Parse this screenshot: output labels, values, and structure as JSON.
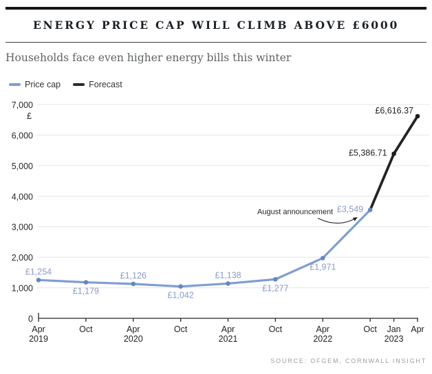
{
  "header": {
    "title": "ENERGY PRICE CAP WILL CLIMB ABOVE £6000",
    "subtitle": "Households face even higher energy bills this winter"
  },
  "legend": {
    "items": [
      {
        "label": "Price cap",
        "color": "#7e9dd2"
      },
      {
        "label": "Forecast",
        "color": "#2b2b2b"
      }
    ]
  },
  "footer": {
    "source": "SOURCE: OFGEM, CORNWALL INSIGHT"
  },
  "colors": {
    "accent_blue": "#7e9dd2",
    "forecast_black": "#232323",
    "grid": "#e4e4e4",
    "axis": "#262626"
  },
  "chart_data": {
    "type": "line",
    "title": "ENERGY PRICE CAP WILL CLIMB ABOVE £6000",
    "xlabel": "",
    "ylabel": "£",
    "ylim": [
      0,
      7000
    ],
    "ytick_step": 1000,
    "grid": true,
    "legend_position": "top-left",
    "x_months_range": [
      0,
      48
    ],
    "xticks": [
      {
        "month": 0,
        "label": "Apr",
        "year": "2019"
      },
      {
        "month": 6,
        "label": "Oct"
      },
      {
        "month": 12,
        "label": "Apr",
        "year": "2020"
      },
      {
        "month": 18,
        "label": "Oct"
      },
      {
        "month": 24,
        "label": "Apr",
        "year": "2021"
      },
      {
        "month": 30,
        "label": "Oct"
      },
      {
        "month": 36,
        "label": "Apr",
        "year": "2022"
      },
      {
        "month": 42,
        "label": "Oct"
      },
      {
        "month": 45,
        "label": "Jan",
        "year": "2023"
      },
      {
        "month": 48,
        "label": "Apr"
      }
    ],
    "series": [
      {
        "name": "Price cap",
        "color": "#7e9dd2",
        "marker_color": "#6487c2",
        "label_color": "#8a99c8",
        "width": 3.2,
        "points": [
          {
            "month": 0,
            "value": 1254,
            "label": "£1,254",
            "label_pos": "above"
          },
          {
            "month": 6,
            "value": 1179,
            "label": "£1,179",
            "label_pos": "below"
          },
          {
            "month": 12,
            "value": 1126,
            "label": "£1,126",
            "label_pos": "above"
          },
          {
            "month": 18,
            "value": 1042,
            "label": "£1,042",
            "label_pos": "below"
          },
          {
            "month": 24,
            "value": 1138,
            "label": "£1,138",
            "label_pos": "above"
          },
          {
            "month": 30,
            "value": 1277,
            "label": "£1,277",
            "label_pos": "below"
          },
          {
            "month": 36,
            "value": 1971,
            "label": "£1,971",
            "label_pos": "below"
          },
          {
            "month": 42,
            "value": 3549,
            "label": "£3,549",
            "label_pos": "left"
          }
        ]
      },
      {
        "name": "Forecast",
        "color": "#232323",
        "marker_color": "#1d1d1d",
        "label_color": "#1f1f1f",
        "width": 3.8,
        "points": [
          {
            "month": 42,
            "value": 3549,
            "marker": false
          },
          {
            "month": 45,
            "value": 5386.71,
            "label": "£5,386.71",
            "label_pos": "left"
          },
          {
            "month": 48,
            "value": 6616.37,
            "label": "£6,616.37",
            "label_pos": "left-up"
          }
        ]
      }
    ],
    "annotation": {
      "text": "August announcement",
      "target_month": 42,
      "target_value": 3549
    }
  }
}
